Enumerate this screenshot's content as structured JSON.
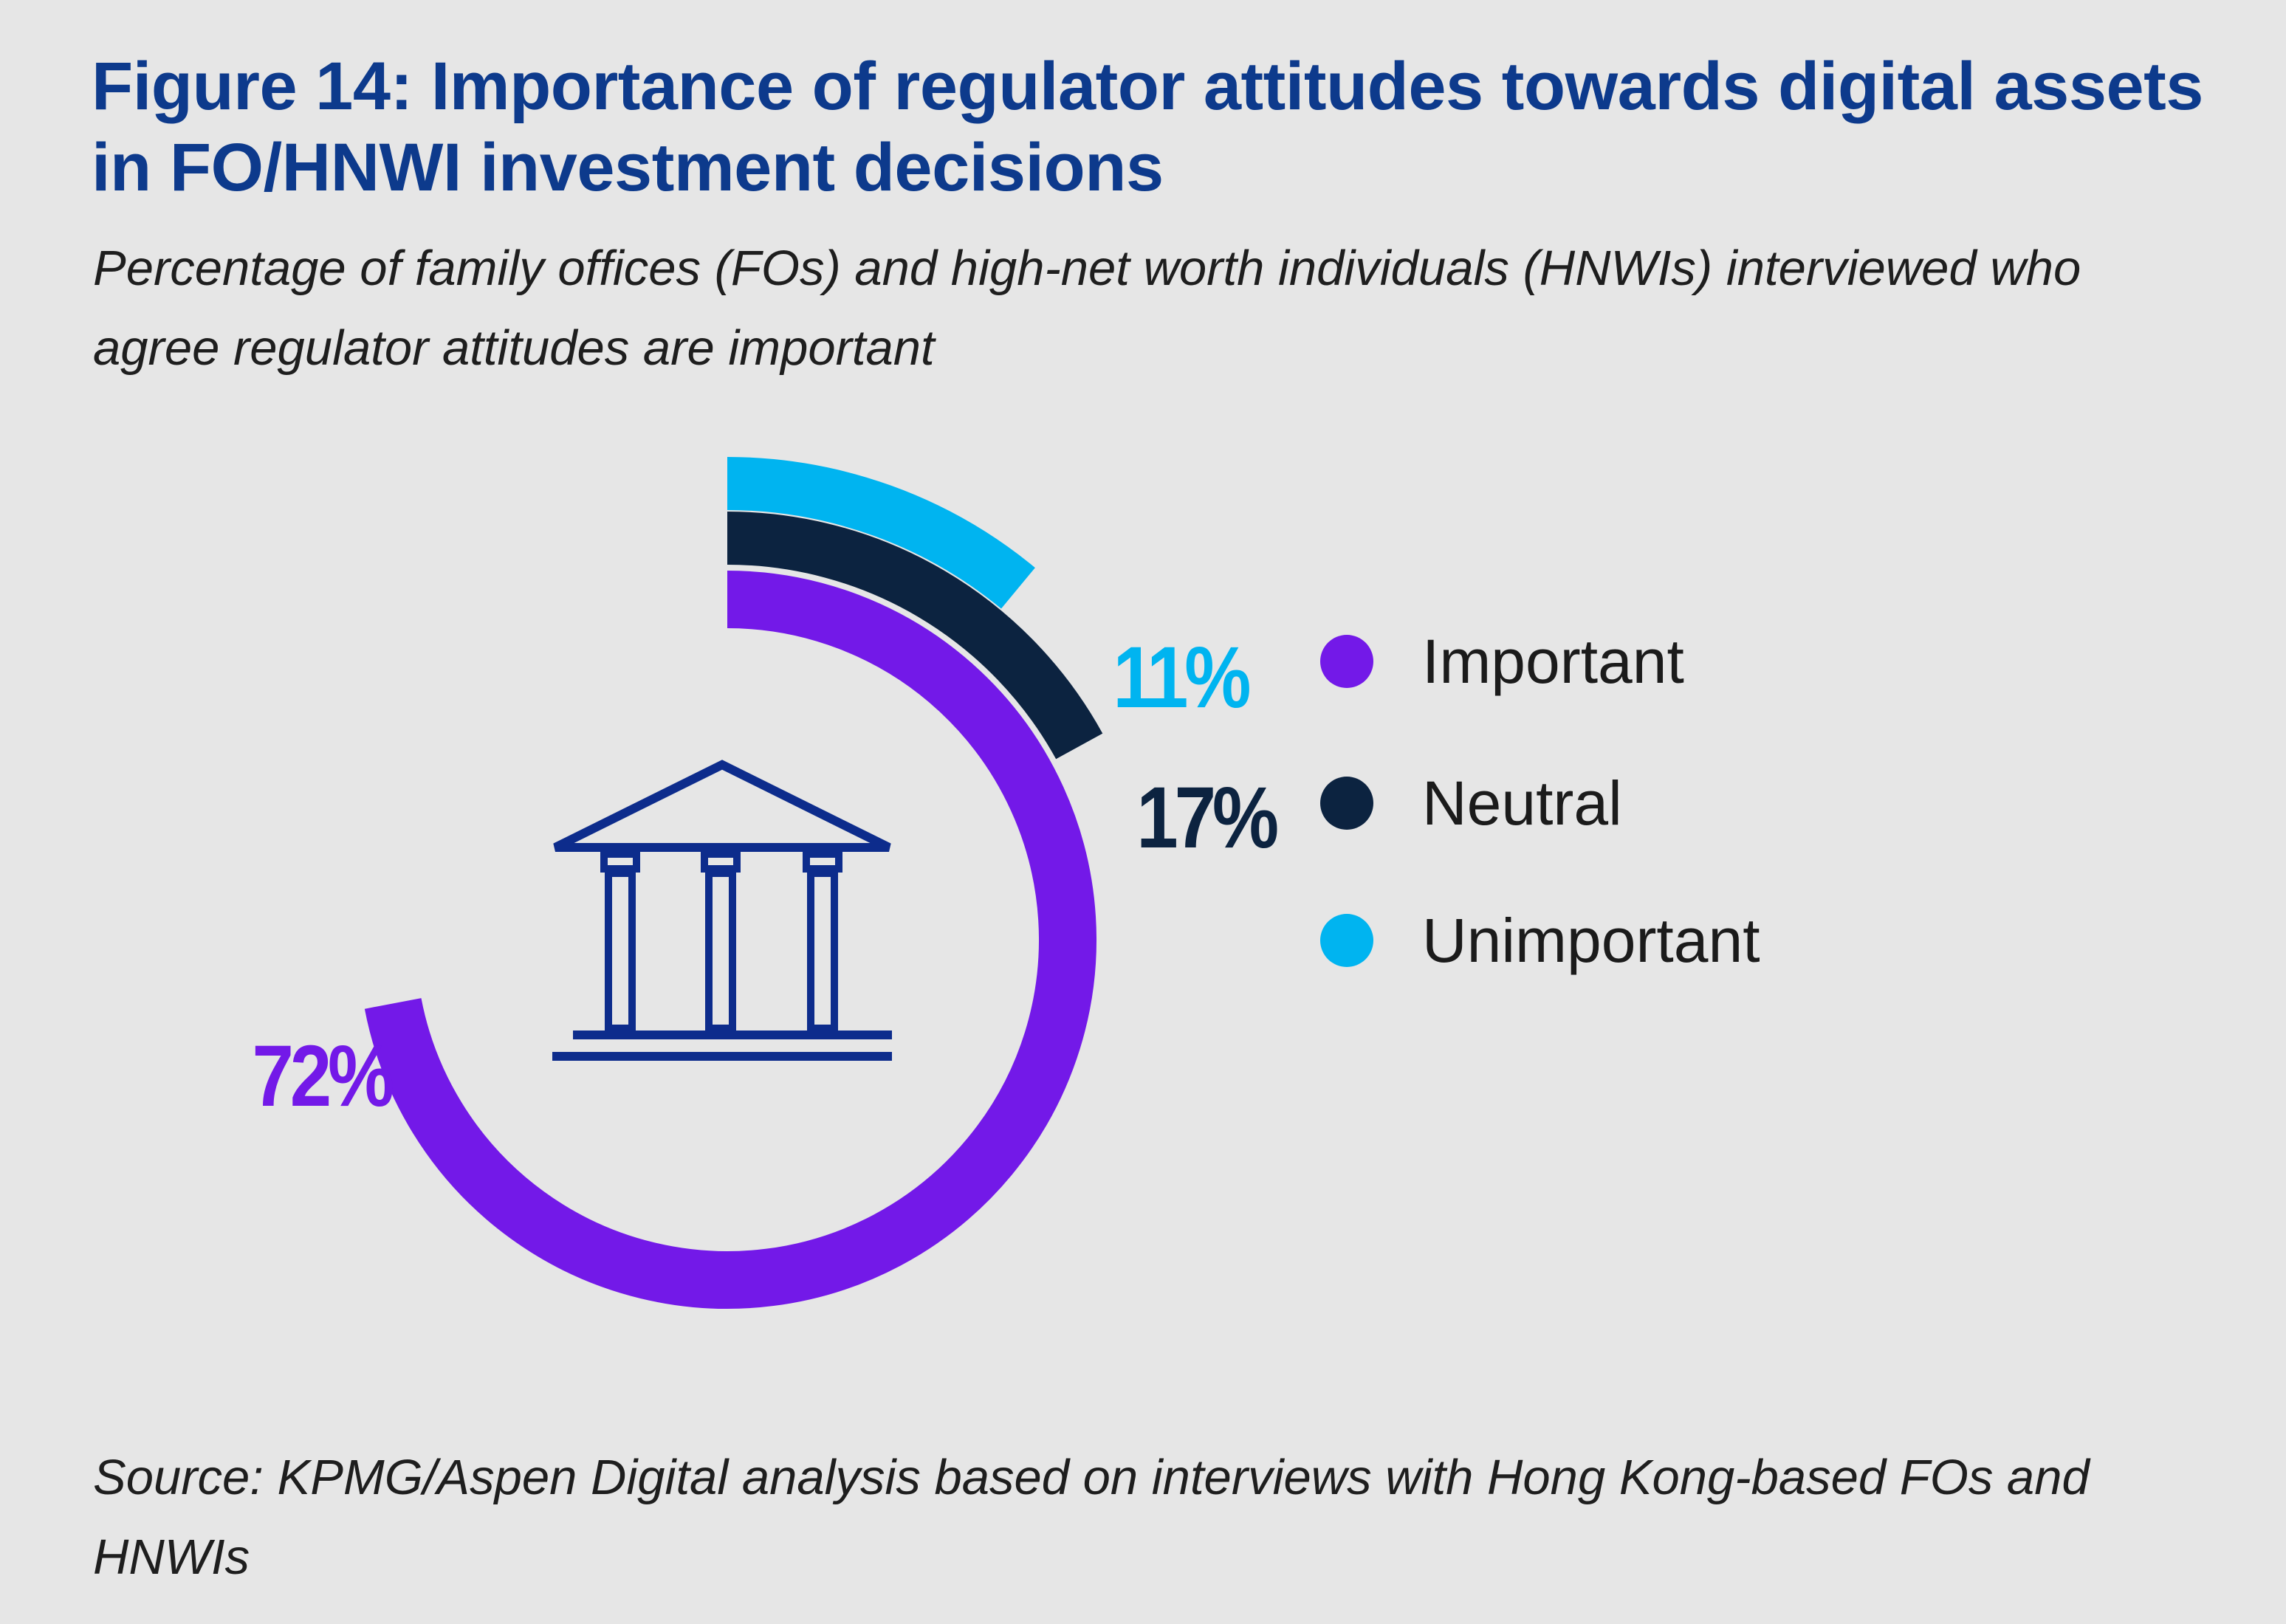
{
  "header": {
    "title": "Figure 14: Importance of regulator attitudes towards digital assets in FO/HNWI investment decisions",
    "subtitle": "Percentage of family offices (FOs) and high-net worth individuals (HNWIs) interviewed who agree regulator attitudes are important"
  },
  "footer": {
    "source": "Source: KPMG/Aspen Digital analysis based on interviews with Hong Kong-based FOs and HNWIs"
  },
  "icon": {
    "name": "bank-building-icon",
    "color": "#0d2c8c"
  },
  "chart_data": {
    "type": "pie",
    "style": "concentric-radial",
    "title": "Figure 14: Importance of regulator attitudes towards digital assets in FO/HNWI investment decisions",
    "legend_position": "right",
    "unit": "%",
    "categories": [
      "Important",
      "Neutral",
      "Unimportant"
    ],
    "values": [
      72,
      17,
      11
    ],
    "labels": [
      "72%",
      "17%",
      "11%"
    ],
    "colors": [
      "#7319e8",
      "#0c2340",
      "#00b4f0"
    ]
  }
}
